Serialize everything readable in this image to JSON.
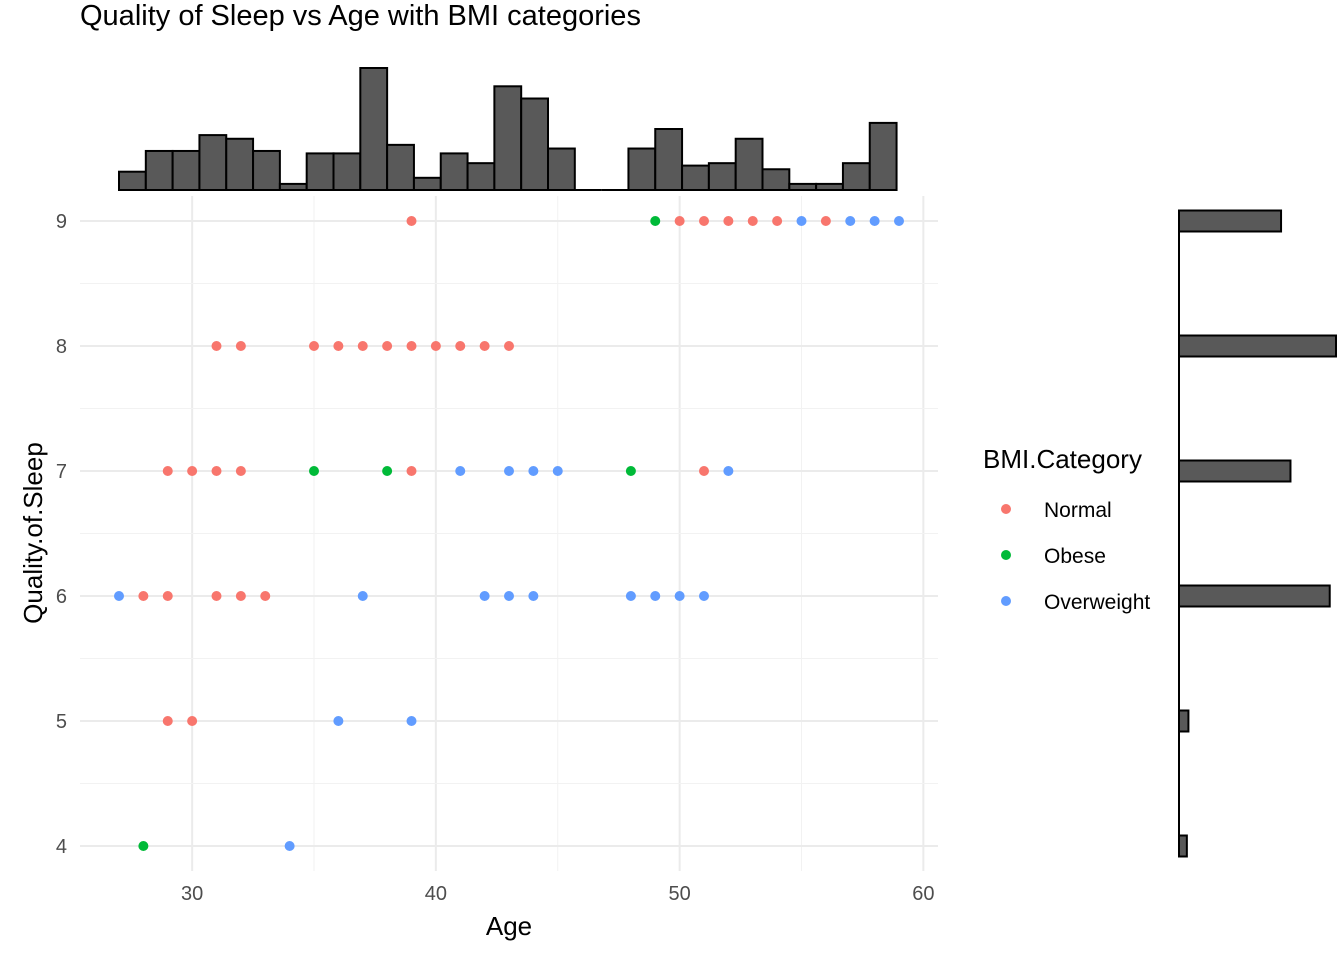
{
  "chart_data": {
    "type": "scatter",
    "title": "Quality of Sleep vs Age with BMI categories",
    "xlabel": "Age",
    "ylabel": "Quality.of.Sleep",
    "xlim": [
      25.4,
      60.6
    ],
    "ylim": [
      3.8,
      9.2
    ],
    "x_ticks": [
      30,
      40,
      50,
      60
    ],
    "y_ticks": [
      4,
      5,
      6,
      7,
      8,
      9
    ],
    "grid": true,
    "legend": {
      "title": "BMI.Category",
      "position": "right",
      "entries": [
        {
          "label": "Normal",
          "color": "#F8766D"
        },
        {
          "label": "Obese",
          "color": "#00BA38"
        },
        {
          "label": "Overweight",
          "color": "#619CFF"
        }
      ]
    },
    "series": [
      {
        "name": "Normal",
        "color": "#F8766D",
        "points": [
          [
            39,
            9
          ],
          [
            50,
            9
          ],
          [
            51,
            9
          ],
          [
            52,
            9
          ],
          [
            53,
            9
          ],
          [
            54,
            9
          ],
          [
            56,
            9
          ],
          [
            31,
            8
          ],
          [
            32,
            8
          ],
          [
            35,
            8
          ],
          [
            36,
            8
          ],
          [
            37,
            8
          ],
          [
            38,
            8
          ],
          [
            39,
            8
          ],
          [
            40,
            8
          ],
          [
            41,
            8
          ],
          [
            42,
            8
          ],
          [
            43,
            8
          ],
          [
            29,
            7
          ],
          [
            30,
            7
          ],
          [
            31,
            7
          ],
          [
            32,
            7
          ],
          [
            39,
            7
          ],
          [
            51,
            7
          ],
          [
            28,
            6
          ],
          [
            29,
            6
          ],
          [
            31,
            6
          ],
          [
            32,
            6
          ],
          [
            33,
            6
          ],
          [
            29,
            5
          ],
          [
            30,
            5
          ]
        ]
      },
      {
        "name": "Obese",
        "color": "#00BA38",
        "points": [
          [
            49,
            9
          ],
          [
            35,
            7
          ],
          [
            38,
            7
          ],
          [
            48,
            7
          ],
          [
            28,
            4
          ]
        ]
      },
      {
        "name": "Overweight",
        "color": "#619CFF",
        "points": [
          [
            55,
            9
          ],
          [
            57,
            9
          ],
          [
            58,
            9
          ],
          [
            59,
            9
          ],
          [
            41,
            7
          ],
          [
            43,
            7
          ],
          [
            44,
            7
          ],
          [
            45,
            7
          ],
          [
            52,
            7
          ],
          [
            27,
            6
          ],
          [
            37,
            6
          ],
          [
            42,
            6
          ],
          [
            43,
            6
          ],
          [
            44,
            6
          ],
          [
            48,
            6
          ],
          [
            49,
            6
          ],
          [
            50,
            6
          ],
          [
            51,
            6
          ],
          [
            36,
            5
          ],
          [
            39,
            5
          ],
          [
            34,
            4
          ]
        ]
      }
    ],
    "marginal_x_histogram": {
      "bin_width": 1.1,
      "bins_start": 27,
      "relative_heights": [
        0.15,
        0.32,
        0.32,
        0.45,
        0.42,
        0.32,
        0.05,
        0.3,
        0.3,
        1.0,
        0.37,
        0.1,
        0.3,
        0.22,
        0.85,
        0.75,
        0.34,
        0,
        0,
        0.34,
        0.5,
        0.2,
        0.22,
        0.42,
        0.17,
        0.05,
        0.05,
        0.22,
        0.55
      ]
    },
    "marginal_y_histogram": {
      "bin_centers": [
        9,
        8,
        7,
        6,
        5,
        4
      ],
      "relative_widths": [
        0.65,
        1.0,
        0.71,
        0.96,
        0.06,
        0.05
      ]
    }
  }
}
